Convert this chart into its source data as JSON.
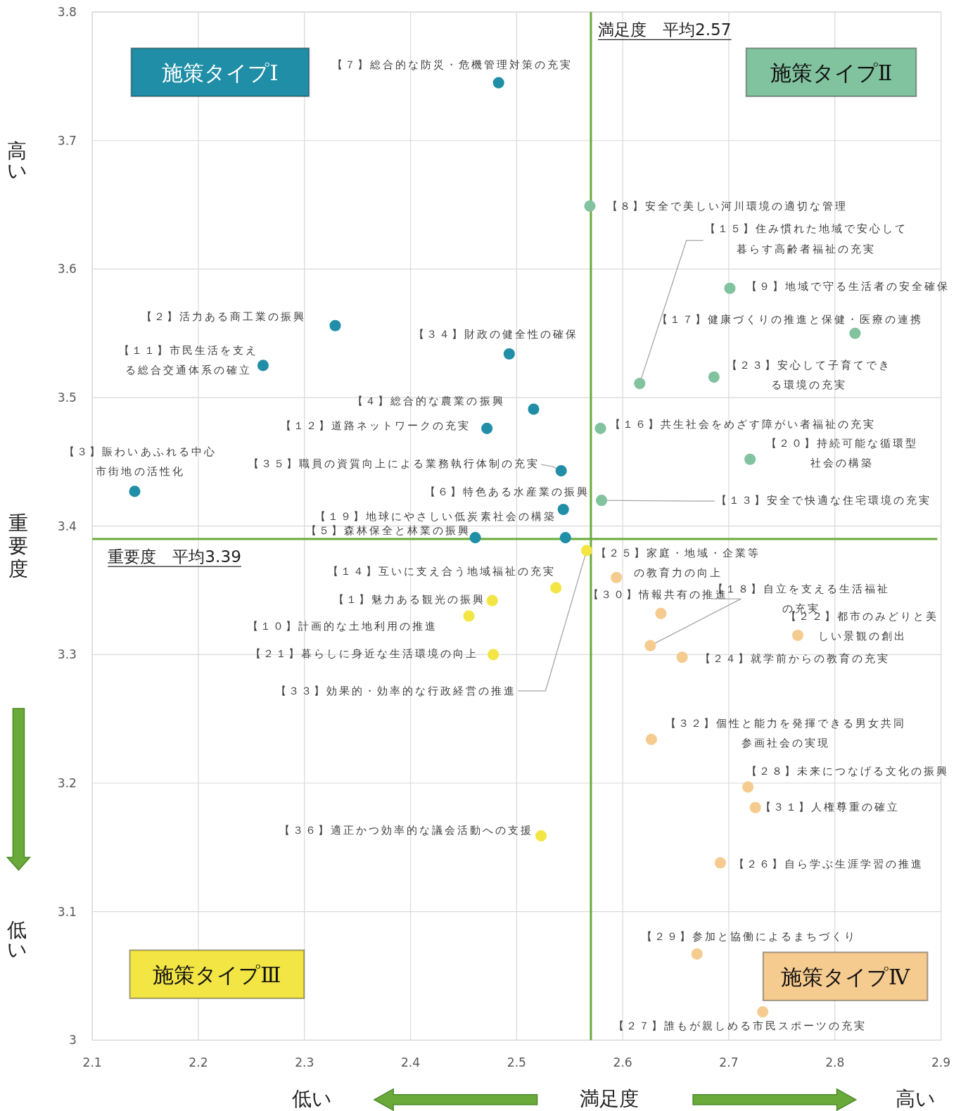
{
  "chart_data": {
    "type": "scatter",
    "xlabel": "満足度",
    "ylabel": "重要度",
    "xlim": [
      2.1,
      2.9
    ],
    "ylim": [
      3.0,
      3.8
    ],
    "xticks": [
      2.1,
      2.2,
      2.3,
      2.4,
      2.5,
      2.6,
      2.7,
      2.8,
      2.9
    ],
    "yticks": [
      3,
      3.1,
      3.2,
      3.3,
      3.4,
      3.5,
      3.6,
      3.7,
      3.8
    ],
    "grid": true,
    "marker": "circle",
    "series": [
      {
        "name": "施策タイプⅠ",
        "color": "#1f8ea6",
        "x": [
          2.483,
          2.329,
          2.261,
          2.493,
          2.516,
          2.472,
          2.14,
          2.542,
          2.544,
          2.546,
          2.461
        ],
        "values": [
          3.745,
          3.556,
          3.525,
          3.534,
          3.491,
          3.476,
          3.427,
          3.443,
          3.413,
          3.391,
          3.391
        ]
      },
      {
        "name": "施策タイプⅡ",
        "color": "#82c39f",
        "x": [
          2.569,
          2.616,
          2.701,
          2.819,
          2.686,
          2.579,
          2.72,
          2.58
        ],
        "values": [
          3.649,
          3.511,
          3.585,
          3.55,
          3.516,
          3.476,
          3.452,
          3.42
        ]
      },
      {
        "name": "施策タイプⅢ",
        "color": "#f2e544",
        "x": [
          2.537,
          2.477,
          2.455,
          2.478,
          2.566,
          2.523
        ],
        "values": [
          3.352,
          3.342,
          3.33,
          3.3,
          3.381,
          3.159
        ]
      },
      {
        "name": "施策タイプⅣ",
        "color": "#f6cb90",
        "x": [
          2.594,
          2.636,
          2.626,
          2.765,
          2.656,
          2.627,
          2.718,
          2.725,
          2.692,
          2.67,
          2.732
        ],
        "values": [
          3.36,
          3.332,
          3.307,
          3.315,
          3.298,
          3.234,
          3.197,
          3.181,
          3.138,
          3.067,
          3.022
        ]
      }
    ],
    "ref_lines": [
      {
        "axis": "x",
        "value": 2.57,
        "label": "満足度　平均2.57",
        "color": "#6aaa3a"
      },
      {
        "axis": "y",
        "value": 3.39,
        "label": "重要度　平均3.39",
        "color": "#6aaa3a"
      }
    ],
    "annotations": [
      {
        "text": "【７】総合的な防災・危機管理対策の充実",
        "x": 2.483,
        "y": 3.745
      },
      {
        "text": "【２】活力ある商工業の振興",
        "x": 2.329,
        "y": 3.556
      },
      {
        "text": "【１１】市民生活を支える総合交通体系の確立",
        "x": 2.261,
        "y": 3.525
      },
      {
        "text": "【３４】財政の健全性の確保",
        "x": 2.493,
        "y": 3.534
      },
      {
        "text": "【４】総合的な農業の振興",
        "x": 2.516,
        "y": 3.491
      },
      {
        "text": "【１２】道路ネットワークの充実",
        "x": 2.472,
        "y": 3.476
      },
      {
        "text": "【３】賑わいあふれる中心市街地の活性化",
        "x": 2.14,
        "y": 3.427
      },
      {
        "text": "【３５】職員の資質向上による業務執行体制の充実",
        "x": 2.542,
        "y": 3.443
      },
      {
        "text": "【６】特色ある水産業の振興",
        "x": 2.544,
        "y": 3.413
      },
      {
        "text": "【１９】地球にやさしい低炭素社会の構築",
        "x": 2.546,
        "y": 3.391
      },
      {
        "text": "【５】森林保全と林業の振興",
        "x": 2.461,
        "y": 3.391
      },
      {
        "text": "【８】安全で美しい河川環境の適切な管理",
        "x": 2.569,
        "y": 3.649
      },
      {
        "text": "【１５】住み慣れた地域で安心して暮らす高齢者福祉の充実",
        "x": 2.616,
        "y": 3.511
      },
      {
        "text": "【９】地域で守る生活者の安全確保",
        "x": 2.701,
        "y": 3.585
      },
      {
        "text": "【１７】健康づくりの推進と保健・医療の連携",
        "x": 2.819,
        "y": 3.55
      },
      {
        "text": "【２３】安心して子育てできる環境の充実",
        "x": 2.686,
        "y": 3.516
      },
      {
        "text": "【１６】共生社会をめざす障がい者福祉の充実",
        "x": 2.579,
        "y": 3.476
      },
      {
        "text": "【２０】持続可能な循環型社会の構築",
        "x": 2.72,
        "y": 3.452
      },
      {
        "text": "【１３】安全で快適な住宅環境の充実",
        "x": 2.58,
        "y": 3.42
      },
      {
        "text": "【１４】互いに支え合う地域福祉の充実",
        "x": 2.537,
        "y": 3.352
      },
      {
        "text": "【１】魅力ある観光の振興",
        "x": 2.477,
        "y": 3.342
      },
      {
        "text": "【１０】計画的な土地利用の推進",
        "x": 2.455,
        "y": 3.33
      },
      {
        "text": "【２１】暮らしに身近な生活環境の向上",
        "x": 2.478,
        "y": 3.3
      },
      {
        "text": "【３３】効果的・効率的な行政経営の推進",
        "x": 2.566,
        "y": 3.381
      },
      {
        "text": "【３６】適正かつ効率的な議会活動への支援",
        "x": 2.523,
        "y": 3.159
      },
      {
        "text": "【２５】家庭・地域・企業等の教育力の向上",
        "x": 2.594,
        "y": 3.36
      },
      {
        "text": "【３０】情報共有の推進",
        "x": 2.636,
        "y": 3.332
      },
      {
        "text": "【１８】自立を支える生活福祉の充実",
        "x": 2.626,
        "y": 3.307
      },
      {
        "text": "【２２】都市のみどりと美しい景観の創出",
        "x": 2.765,
        "y": 3.315
      },
      {
        "text": "【２４】就学前からの教育の充実",
        "x": 2.656,
        "y": 3.298
      },
      {
        "text": "【３２】個性と能力を発揮できる男女共同参画社会の実現",
        "x": 2.627,
        "y": 3.234
      },
      {
        "text": "【２８】未来につなげる文化の振興",
        "x": 2.718,
        "y": 3.197
      },
      {
        "text": "【３１】人権尊重の確立",
        "x": 2.725,
        "y": 3.181
      },
      {
        "text": "【２６】自ら学ぶ生涯学習の推進",
        "x": 2.692,
        "y": 3.138
      },
      {
        "text": "【２９】参加と協働によるまちづくり",
        "x": 2.67,
        "y": 3.067
      },
      {
        "text": "【２７】誰もが親しめる市民スポーツの充実",
        "x": 2.732,
        "y": 3.022
      },
      "低い",
      "高い",
      "高い",
      "低い"
    ]
  }
}
